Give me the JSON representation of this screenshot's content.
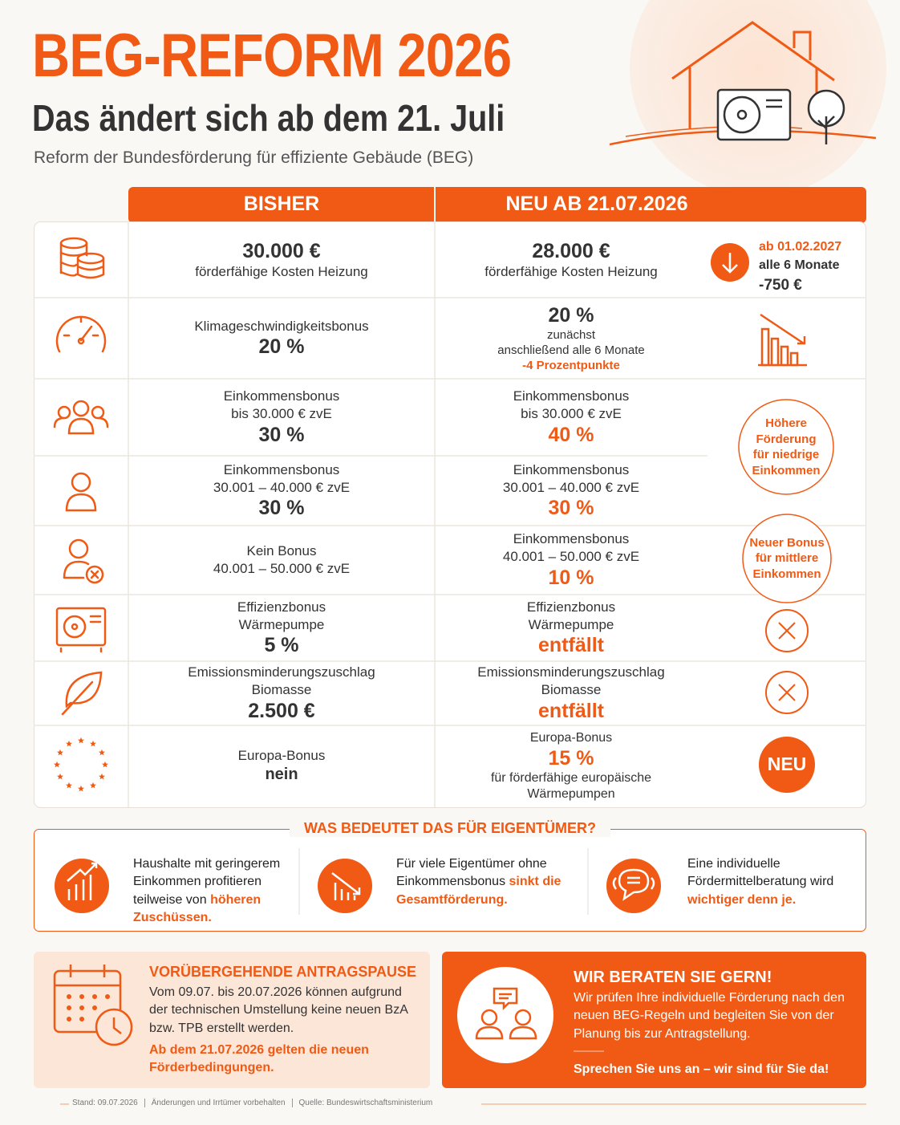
{
  "header": {
    "title": "BEG-REFORM 2026",
    "subtitle": "Das ändert sich ab dem 21. Juli",
    "description": "Reform der Bundesförderung für effiziente Gebäude (BEG)"
  },
  "table": {
    "columns": [
      "BISHER",
      "NEU AB 21.07.2026"
    ],
    "rows": [
      {
        "old": [
          "30.000 €",
          "förderfähige Kosten Heizung"
        ],
        "new": [
          "28.000 €",
          "förderfähige Kosten Heizung"
        ],
        "note": [
          "ab 01.02.2027",
          "alle 6 Monate",
          "-750 €"
        ]
      },
      {
        "old": [
          "Klimageschwindigkeitsbonus",
          "20 %"
        ],
        "new": [
          "20 %",
          "zunächst",
          "anschließend alle 6 Monate",
          "-4 Prozentpunkte"
        ]
      },
      {
        "old": [
          "Einkommensbonus",
          "bis 30.000 € zvE",
          "30 %"
        ],
        "new": [
          "Einkommensbonus",
          "bis 30.000 € zvE",
          "40 %"
        ],
        "note": [
          "Höhere Förderung für niedrige Einkommen"
        ]
      },
      {
        "old": [
          "Einkommensbonus",
          "30.001 – 40.000 € zvE",
          "30 %"
        ],
        "new": [
          "Einkommensbonus",
          "30.001 – 40.000 € zvE",
          "30 %"
        ]
      },
      {
        "old": [
          "Kein Bonus",
          "40.001 – 50.000 € zvE"
        ],
        "new": [
          "Einkommensbonus",
          "40.001 – 50.000 € zvE",
          "10 %"
        ],
        "note": [
          "Neuer Bonus für mittlere Einkommen"
        ]
      },
      {
        "old": [
          "Effizienzbonus",
          "Wärmepumpe",
          "5 %"
        ],
        "new": [
          "Effizienzbonus",
          "Wärmepumpe",
          "entfällt"
        ]
      },
      {
        "old": [
          "Emissionsminderungszuschlag",
          "Biomasse",
          "2.500 €"
        ],
        "new": [
          "Emissionsminderungszuschlag",
          "Biomasse",
          "entfällt"
        ]
      },
      {
        "old": [
          "Europa-Bonus",
          "nein"
        ],
        "new": [
          "Europa-Bonus",
          "15 %",
          "für förderfähige europäische Wärmepumpen"
        ],
        "note": [
          "NEU"
        ]
      }
    ]
  },
  "implications": {
    "title": "WAS BEDEUTET DAS FÜR EIGENTÜMER?",
    "items": [
      {
        "text": "Haushalte mit geringerem Einkommen profitieren teilweise von",
        "highlight": "höheren Zuschüssen."
      },
      {
        "text": "Für viele Eigentümer ohne Einkommensbonus",
        "highlight": "sinkt die Gesamtförderung."
      },
      {
        "text": "Eine individuelle Fördermittelberatung wird",
        "highlight": "wichtiger denn je."
      }
    ]
  },
  "notice": {
    "title": "VORÜBERGEHENDE ANTRAGSPAUSE",
    "text": "Vom 09.07. bis 20.07.2026 können aufgrund der technischen Umstellung keine neuen BzA bzw. TPB erstellt werden.",
    "highlight": "Ab dem 21.07.2026 gelten die neuen Förderbedingungen."
  },
  "contact": {
    "title": "WIR BERATEN SIE GERN!",
    "text": "Wir prüfen Ihre individuelle Förderung nach den neuen BEG-Regeln und begleiten Sie von der Planung bis zur Antragstellung.",
    "closing": "Sprechen Sie uns an – wir sind für Sie da!"
  },
  "footer": [
    "Stand: 09.07.2026",
    "Änderungen und Irrtümer vorbehalten",
    "Quelle: Bundeswirtschaftsministerium"
  ]
}
